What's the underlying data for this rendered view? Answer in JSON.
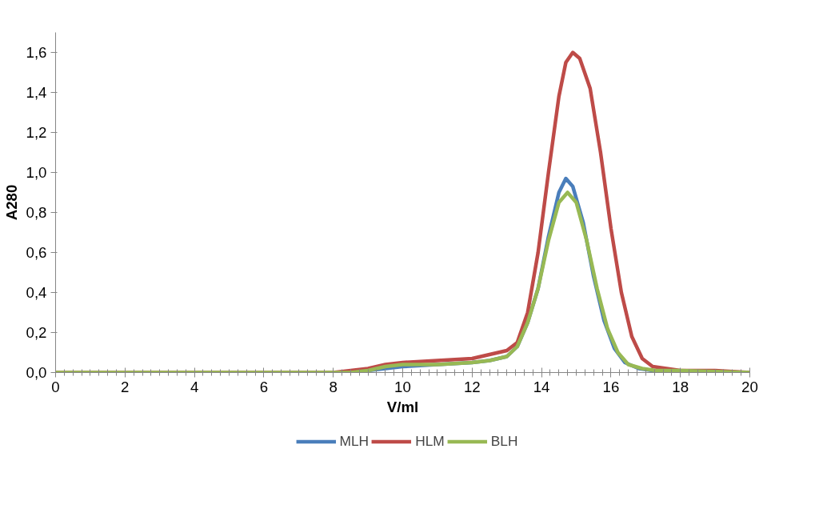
{
  "chart_data": {
    "type": "line",
    "xlabel": "V/ml",
    "ylabel": "A280",
    "xlim": [
      0,
      20
    ],
    "xticks": [
      0,
      2,
      4,
      6,
      8,
      10,
      12,
      14,
      16,
      18,
      20
    ],
    "ylim": [
      0,
      1.7
    ],
    "yticks": [
      {
        "value": 0,
        "label": "0,0"
      },
      {
        "value": 0.2,
        "label": "0,2"
      },
      {
        "value": 0.4,
        "label": "0,4"
      },
      {
        "value": 0.6,
        "label": "0,6"
      },
      {
        "value": 0.8,
        "label": "0,8"
      },
      {
        "value": 1.0,
        "label": "1,0"
      },
      {
        "value": 1.2,
        "label": "1,2"
      },
      {
        "value": 1.4,
        "label": "1,4"
      },
      {
        "value": 1.6,
        "label": "1,6"
      }
    ],
    "grid": false,
    "legend": "bottom",
    "marker": "none",
    "line_style": "solid",
    "series": [
      {
        "name": "MLH",
        "color": "#4a7ebb",
        "x": [
          8.5,
          9,
          9.5,
          10,
          11,
          12,
          12.5,
          13,
          13.3,
          13.6,
          13.9,
          14.2,
          14.5,
          14.7,
          14.9,
          15.2,
          15.5,
          15.8,
          16.1,
          16.4,
          16.8,
          17.2,
          18,
          20
        ],
        "values": [
          0,
          0.01,
          0.02,
          0.03,
          0.04,
          0.05,
          0.06,
          0.08,
          0.13,
          0.25,
          0.42,
          0.68,
          0.9,
          0.97,
          0.93,
          0.75,
          0.48,
          0.26,
          0.12,
          0.05,
          0.02,
          0.01,
          0,
          0
        ]
      },
      {
        "name": "HLM",
        "color": "#be4b48",
        "x": [
          0,
          8,
          8.5,
          9,
          9.5,
          10,
          11,
          12,
          12.5,
          13,
          13.3,
          13.6,
          13.9,
          14.2,
          14.5,
          14.7,
          14.9,
          15.1,
          15.4,
          15.7,
          16.0,
          16.3,
          16.6,
          16.9,
          17.2,
          17.6,
          18,
          19,
          20
        ],
        "values": [
          0,
          0,
          0.01,
          0.02,
          0.04,
          0.05,
          0.06,
          0.07,
          0.09,
          0.11,
          0.15,
          0.3,
          0.6,
          1.0,
          1.38,
          1.55,
          1.6,
          1.57,
          1.42,
          1.1,
          0.72,
          0.4,
          0.18,
          0.07,
          0.03,
          0.02,
          0.01,
          0.01,
          0
        ]
      },
      {
        "name": "BLH",
        "color": "#98b954",
        "x": [
          0,
          8,
          8.5,
          9,
          9.5,
          10,
          11,
          12,
          12.5,
          13,
          13.3,
          13.6,
          13.9,
          14.2,
          14.5,
          14.75,
          15.0,
          15.3,
          15.6,
          15.9,
          16.2,
          16.5,
          16.9,
          17.3,
          18,
          20
        ],
        "values": [
          0,
          0,
          0,
          0.01,
          0.03,
          0.04,
          0.04,
          0.05,
          0.06,
          0.08,
          0.13,
          0.25,
          0.42,
          0.66,
          0.85,
          0.9,
          0.85,
          0.66,
          0.42,
          0.22,
          0.1,
          0.04,
          0.02,
          0.01,
          0.01,
          0
        ]
      }
    ]
  }
}
